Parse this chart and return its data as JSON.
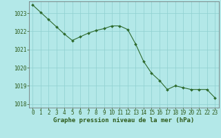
{
  "hours": [
    0,
    1,
    2,
    3,
    4,
    5,
    6,
    7,
    8,
    9,
    10,
    11,
    12,
    13,
    14,
    15,
    16,
    17,
    18,
    19,
    20,
    21,
    22,
    23
  ],
  "pressure": [
    1023.45,
    1023.05,
    1022.65,
    1022.25,
    1021.85,
    1021.5,
    1021.7,
    1021.9,
    1022.05,
    1022.15,
    1022.3,
    1022.3,
    1022.1,
    1021.3,
    1020.35,
    1019.7,
    1019.3,
    1018.8,
    1019.0,
    1018.9,
    1018.8,
    1018.8,
    1018.8,
    1018.35
  ],
  "line_color": "#2d6a2d",
  "marker": "D",
  "marker_size": 2.0,
  "bg_color": "#b3e8e8",
  "grid_color": "#8fcfcf",
  "xlabel": "Graphe pression niveau de la mer (hPa)",
  "xlabel_color": "#2d5a1a",
  "tick_color": "#2d5a1a",
  "ylim": [
    1017.8,
    1023.65
  ],
  "xlim": [
    -0.5,
    23.5
  ],
  "yticks": [
    1018,
    1019,
    1020,
    1021,
    1022,
    1023
  ],
  "xticks": [
    0,
    1,
    2,
    3,
    4,
    5,
    6,
    7,
    8,
    9,
    10,
    11,
    12,
    13,
    14,
    15,
    16,
    17,
    18,
    19,
    20,
    21,
    22,
    23
  ],
  "spine_color": "#666666",
  "tick_fontsize": 5.5,
  "xlabel_fontsize": 6.5
}
